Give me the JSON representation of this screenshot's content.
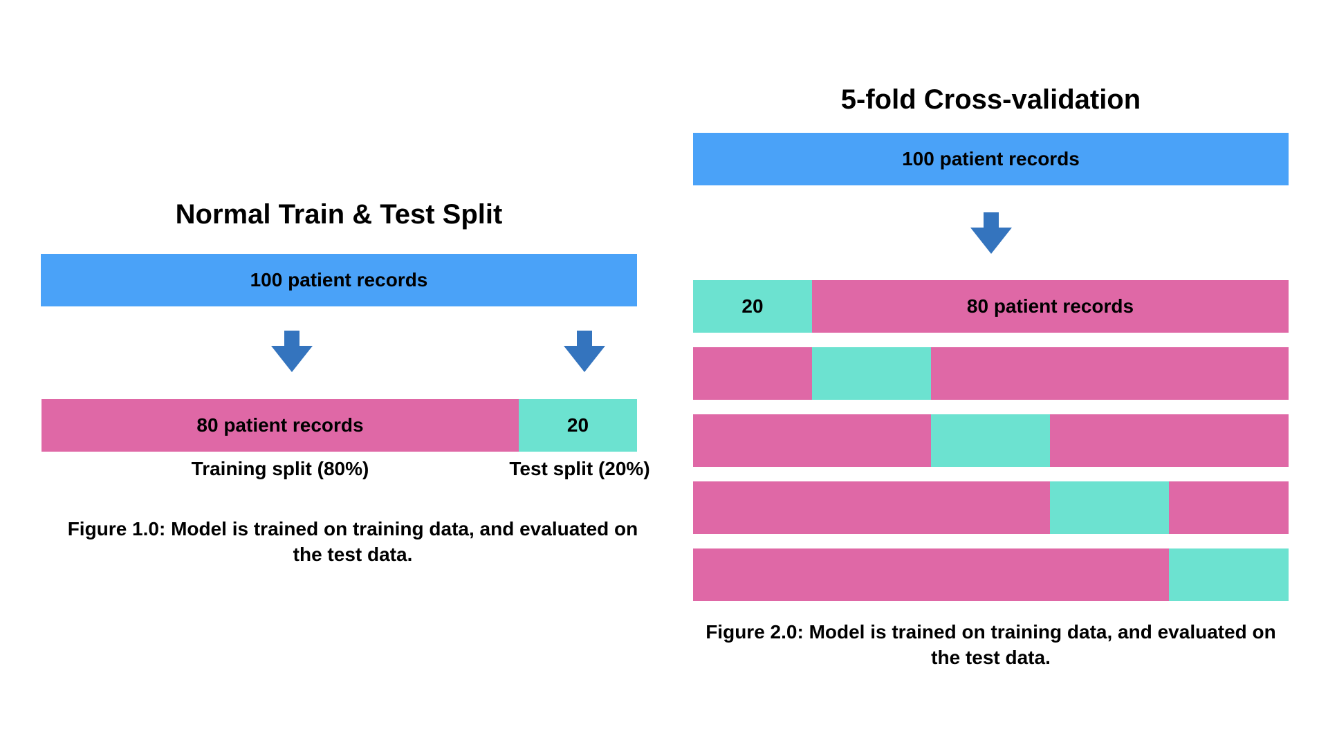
{
  "colors": {
    "total": "#4aa2f8",
    "train": "#df68a6",
    "test": "#6ce2d0",
    "arrow": "#3474be"
  },
  "normal_split": {
    "title": "Normal Train & Test Split",
    "total_label": "100 patient records",
    "train_label": "80 patient records",
    "test_label": "20",
    "train_caption": "Training split (80%)",
    "test_caption": "Test split (20%)",
    "figure_caption": "Figure 1.0: Model is trained on training data, and evaluated on the test data.",
    "arrow_icon": "arrow-down-icon"
  },
  "cross_validation": {
    "title": "5-fold Cross-validation",
    "total_label": "100 patient records",
    "folds": 5,
    "first_fold_test_label": "20",
    "first_fold_train_label": "80 patient records",
    "figure_caption": "Figure 2.0: Model is trained on training data, and evaluated on the test data.",
    "arrow_icon": "arrow-down-icon"
  }
}
